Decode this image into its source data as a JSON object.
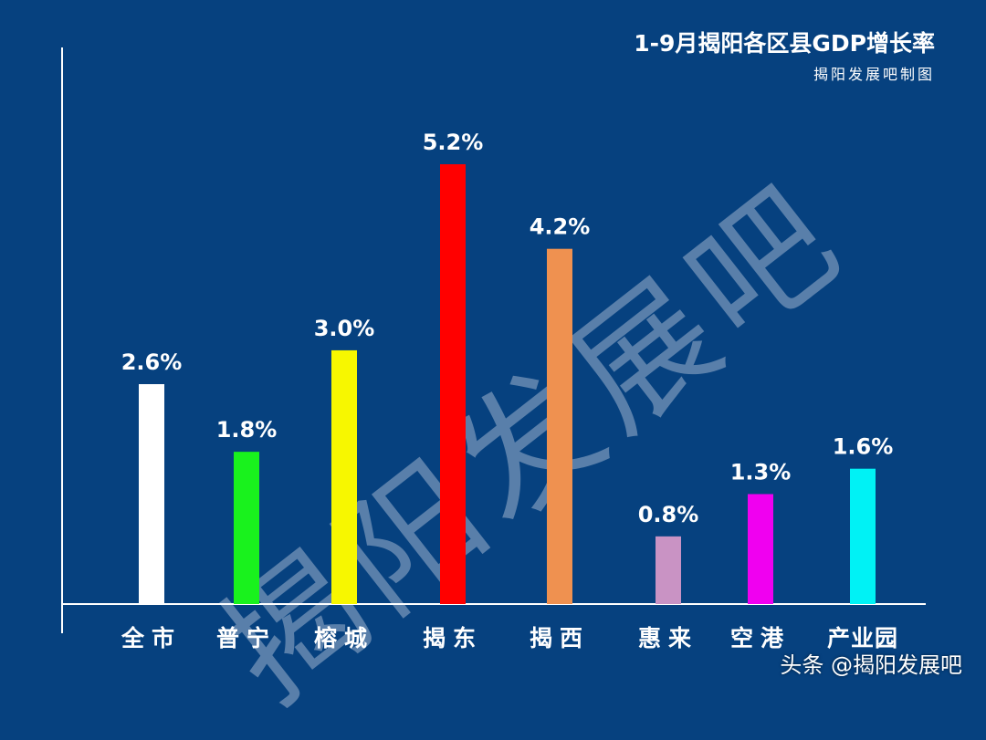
{
  "header": {
    "title": "1-9月揭阳各区县GDP增长率",
    "subtitle": "揭阳发展吧制图"
  },
  "watermarks": {
    "background": "揭阳发展吧",
    "corner": "头条 @揭阳发展吧"
  },
  "chart_data": {
    "type": "bar",
    "categories": [
      "全市",
      "普宁",
      "榕城",
      "揭东",
      "揭西",
      "惠来",
      "空港",
      "产业园"
    ],
    "values": [
      2.6,
      1.8,
      3.0,
      5.2,
      4.2,
      0.8,
      1.3,
      1.6
    ],
    "value_labels": [
      "2.6%",
      "1.8%",
      "3.0%",
      "5.2%",
      "4.2%",
      "0.8%",
      "1.3%",
      "1.6%"
    ],
    "colors": [
      "#ffffff",
      "#19f21d",
      "#f7f700",
      "#ff0000",
      "#ef9150",
      "#c993c4",
      "#f000f0",
      "#00f2f5"
    ],
    "title": "1-9月揭阳各区县GDP增长率",
    "xlabel": "",
    "ylabel": "",
    "ylim": [
      0,
      6
    ],
    "grid": false,
    "legend": "none"
  },
  "colors": {
    "background": "#06417f",
    "axis": "#ffffff",
    "label": "#ffffff"
  }
}
